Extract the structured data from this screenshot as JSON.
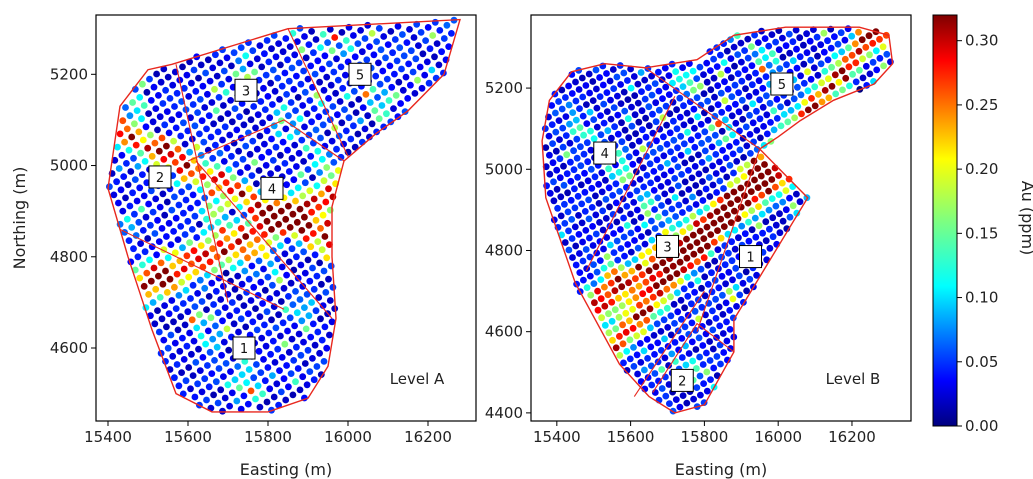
{
  "chart_data": [
    {
      "type": "scatter",
      "level_label": "Level A",
      "xlabel": "Easting (m)",
      "ylabel": "Northing (m)",
      "xlim": [
        15370,
        16320
      ],
      "ylim": [
        4440,
        5330
      ],
      "xticks": [
        15400,
        15600,
        15800,
        16000,
        16200
      ],
      "yticks": [
        4600,
        4800,
        5000,
        5200
      ],
      "domain_labels": [
        {
          "label": "1",
          "x": 15740,
          "y": 4600
        },
        {
          "label": "2",
          "x": 15530,
          "y": 4975
        },
        {
          "label": "3",
          "x": 15745,
          "y": 5165
        },
        {
          "label": "4",
          "x": 15810,
          "y": 4950
        },
        {
          "label": "5",
          "x": 16030,
          "y": 5200
        }
      ],
      "boundary": [
        [
          15400,
          4950
        ],
        [
          15430,
          5130
        ],
        [
          15500,
          5210
        ],
        [
          15560,
          5222
        ],
        [
          15850,
          5300
        ],
        [
          16280,
          5320
        ],
        [
          16240,
          5200
        ],
        [
          16150,
          5120
        ],
        [
          16070,
          5070
        ],
        [
          15990,
          5010
        ],
        [
          15960,
          4910
        ],
        [
          15960,
          4800
        ],
        [
          15970,
          4665
        ],
        [
          15950,
          4560
        ],
        [
          15900,
          4490
        ],
        [
          15800,
          4460
        ],
        [
          15660,
          4460
        ],
        [
          15570,
          4500
        ],
        [
          15510,
          4640
        ],
        [
          15450,
          4800
        ],
        [
          15400,
          4950
        ]
      ],
      "domain_lines": [
        [
          [
            15430,
            4860
          ],
          [
            15840,
            4685
          ]
        ],
        [
          [
            15570,
            5222
          ],
          [
            15700,
            4700
          ]
        ],
        [
          [
            15600,
            5010
          ],
          [
            15840,
            5100
          ],
          [
            15990,
            5010
          ]
        ],
        [
          [
            15620,
            5010
          ],
          [
            15960,
            4665
          ]
        ],
        [
          [
            15850,
            5300
          ],
          [
            16000,
            5020
          ]
        ]
      ],
      "hotbands": [
        {
          "a": 0.34,
          "b": 0.82,
          "c": -0.00058,
          "width": 55
        },
        {
          "a": 0.22,
          "b": -0.48,
          "c": 0.00039,
          "width": 40
        }
      ]
    },
    {
      "type": "scatter",
      "level_label": "Level B",
      "xlabel": "Easting (m)",
      "ylabel": "",
      "xlim": [
        15330,
        16360
      ],
      "ylim": [
        4380,
        5380
      ],
      "xticks": [
        15400,
        15600,
        15800,
        16000,
        16200
      ],
      "yticks": [
        4400,
        4600,
        4800,
        5000,
        5200
      ],
      "domain_labels": [
        {
          "label": "1",
          "x": 15925,
          "y": 4785
        },
        {
          "label": "2",
          "x": 15740,
          "y": 4480
        },
        {
          "label": "3",
          "x": 15700,
          "y": 4810
        },
        {
          "label": "4",
          "x": 15530,
          "y": 5040
        },
        {
          "label": "5",
          "x": 16010,
          "y": 5210
        }
      ],
      "boundary": [
        [
          15360,
          5070
        ],
        [
          15380,
          5170
        ],
        [
          15440,
          5240
        ],
        [
          15530,
          5260
        ],
        [
          15640,
          5250
        ],
        [
          15780,
          5270
        ],
        [
          15880,
          5330
        ],
        [
          16020,
          5350
        ],
        [
          16220,
          5350
        ],
        [
          16300,
          5330
        ],
        [
          16310,
          5260
        ],
        [
          16260,
          5210
        ],
        [
          16150,
          5170
        ],
        [
          16060,
          5120
        ],
        [
          16000,
          5080
        ],
        [
          15950,
          5050
        ],
        [
          16080,
          4930
        ],
        [
          15880,
          4630
        ],
        [
          15880,
          4550
        ],
        [
          15800,
          4420
        ],
        [
          15720,
          4400
        ],
        [
          15650,
          4440
        ],
        [
          15570,
          4520
        ],
        [
          15450,
          4720
        ],
        [
          15370,
          4930
        ],
        [
          15360,
          5070
        ]
      ],
      "domain_lines": [
        [
          [
            15480,
            4750
          ],
          [
            15720,
            5180
          ]
        ],
        [
          [
            15640,
            5250
          ],
          [
            15950,
            5050
          ]
        ],
        [
          [
            15660,
            4450
          ],
          [
            15780,
            4620
          ],
          [
            15880,
            4550
          ]
        ],
        [
          [
            15780,
            4600
          ],
          [
            15950,
            5050
          ]
        ],
        [
          [
            15610,
            4440
          ],
          [
            15800,
            4700
          ]
        ]
      ],
      "hotbands": [
        {
          "a": 0.47,
          "b": 0.72,
          "c": 0.0009,
          "width": 60
        },
        {
          "a": 0.67,
          "b": 0.61,
          "c": 0.00125,
          "width": 45
        }
      ]
    }
  ],
  "colorbar": {
    "label": "Au (ppm)",
    "ticks": [
      0.0,
      0.05,
      0.1,
      0.15,
      0.2,
      0.25,
      0.3
    ],
    "tick_labels": [
      "0.00",
      "0.05",
      "0.10",
      "0.15",
      "0.20",
      "0.25",
      "0.30"
    ],
    "range": [
      0.0,
      0.32
    ],
    "colormap": "jet"
  },
  "colors": {
    "boundary": "#e8281e",
    "axes": "#000000"
  }
}
